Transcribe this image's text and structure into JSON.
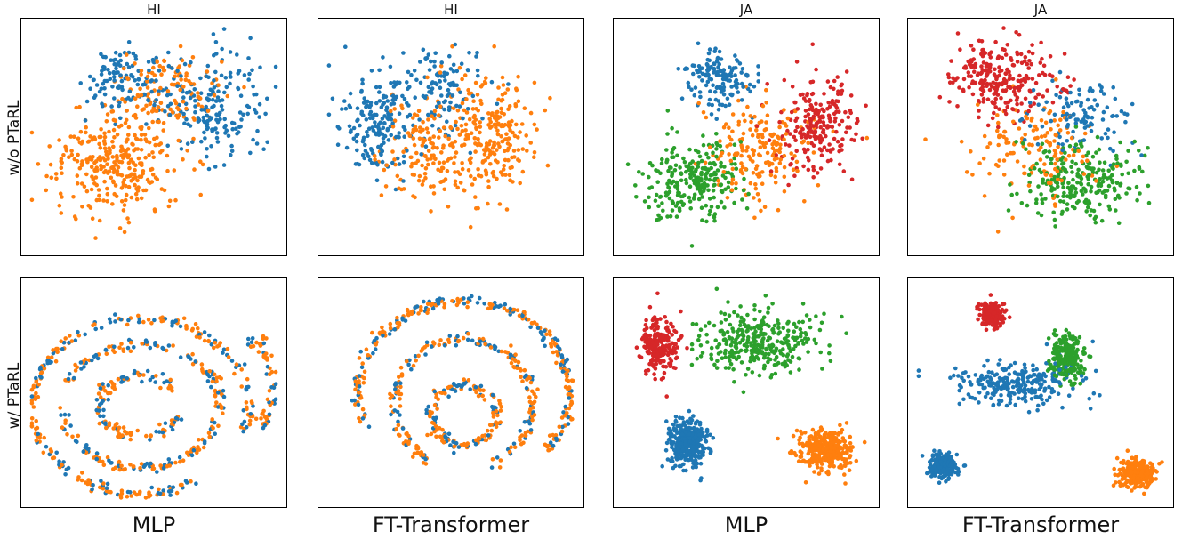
{
  "figure": {
    "col_titles": [
      "HI",
      "HI",
      "JA",
      "JA"
    ],
    "row_labels": [
      "w/o PTaRL",
      "w/ PTaRL"
    ],
    "model_labels": [
      "MLP",
      "FT-Transformer",
      "MLP",
      "FT-Transformer"
    ]
  },
  "colors": {
    "c0": "#1f77b4",
    "c1": "#ff7f0e",
    "c2": "#2ca02c",
    "c3": "#d62728"
  },
  "chart_data": [
    {
      "type": "scatter",
      "title": "HI",
      "dataset": "HI",
      "model": "MLP",
      "setting": "w/o PTaRL",
      "classes": 2,
      "ticks_shown": false,
      "clusters": [
        {
          "cls": 0,
          "cx": 0.72,
          "cy": 0.38,
          "sx": 0.18,
          "sy": 0.2,
          "n": 190
        },
        {
          "cls": 0,
          "cx": 0.4,
          "cy": 0.25,
          "sx": 0.15,
          "sy": 0.12,
          "n": 120
        },
        {
          "cls": 1,
          "cx": 0.35,
          "cy": 0.62,
          "sx": 0.22,
          "sy": 0.2,
          "n": 300
        },
        {
          "cls": 1,
          "cx": 0.55,
          "cy": 0.3,
          "sx": 0.2,
          "sy": 0.16,
          "n": 120
        }
      ]
    },
    {
      "type": "scatter",
      "title": "HI",
      "dataset": "HI",
      "model": "FT-Transformer",
      "setting": "w/o PTaRL",
      "classes": 2,
      "ticks_shown": false,
      "clusters": [
        {
          "cls": 0,
          "cx": 0.22,
          "cy": 0.45,
          "sx": 0.12,
          "sy": 0.2,
          "n": 170
        },
        {
          "cls": 0,
          "cx": 0.45,
          "cy": 0.3,
          "sx": 0.18,
          "sy": 0.18,
          "n": 120
        },
        {
          "cls": 1,
          "cx": 0.62,
          "cy": 0.5,
          "sx": 0.18,
          "sy": 0.22,
          "n": 260
        },
        {
          "cls": 1,
          "cx": 0.4,
          "cy": 0.55,
          "sx": 0.16,
          "sy": 0.2,
          "n": 120
        }
      ]
    },
    {
      "type": "scatter",
      "title": "JA",
      "dataset": "JA",
      "model": "MLP",
      "setting": "w/o PTaRL",
      "classes": 4,
      "ticks_shown": false,
      "clusters": [
        {
          "cls": 0,
          "cx": 0.4,
          "cy": 0.25,
          "sx": 0.12,
          "sy": 0.12,
          "n": 150
        },
        {
          "cls": 2,
          "cx": 0.3,
          "cy": 0.68,
          "sx": 0.17,
          "sy": 0.16,
          "n": 250
        },
        {
          "cls": 3,
          "cx": 0.76,
          "cy": 0.45,
          "sx": 0.14,
          "sy": 0.18,
          "n": 220
        },
        {
          "cls": 1,
          "cx": 0.55,
          "cy": 0.55,
          "sx": 0.18,
          "sy": 0.2,
          "n": 180
        }
      ]
    },
    {
      "type": "scatter",
      "title": "JA",
      "dataset": "JA",
      "model": "FT-Transformer",
      "setting": "w/o PTaRL",
      "classes": 4,
      "ticks_shown": false,
      "clusters": [
        {
          "cls": 3,
          "cx": 0.35,
          "cy": 0.25,
          "sx": 0.18,
          "sy": 0.15,
          "n": 250
        },
        {
          "cls": 2,
          "cx": 0.65,
          "cy": 0.68,
          "sx": 0.2,
          "sy": 0.15,
          "n": 250
        },
        {
          "cls": 0,
          "cx": 0.65,
          "cy": 0.4,
          "sx": 0.18,
          "sy": 0.15,
          "n": 110
        },
        {
          "cls": 1,
          "cx": 0.45,
          "cy": 0.55,
          "sx": 0.22,
          "sy": 0.2,
          "n": 140
        }
      ]
    },
    {
      "type": "scatter",
      "title": "",
      "dataset": "HI",
      "model": "MLP",
      "setting": "w/ PTaRL",
      "classes": 2,
      "ticks_shown": false,
      "arcs": [
        {
          "cx": 0.45,
          "cy": 0.56,
          "rx": 0.15,
          "ry": 0.13,
          "a0": 20,
          "a1": 330,
          "n": 120
        },
        {
          "cx": 0.45,
          "cy": 0.56,
          "rx": 0.3,
          "ry": 0.27,
          "a0": 200,
          "a1": 540,
          "n": 220
        },
        {
          "cx": 0.45,
          "cy": 0.56,
          "rx": 0.41,
          "ry": 0.38,
          "a0": 60,
          "a1": 380,
          "n": 260
        },
        {
          "cx": 0.88,
          "cy": 0.48,
          "rx": 0.06,
          "ry": 0.2,
          "a0": 250,
          "a1": 420,
          "n": 60
        }
      ]
    },
    {
      "type": "scatter",
      "title": "",
      "dataset": "HI",
      "model": "FT-Transformer",
      "setting": "w/ PTaRL",
      "classes": 2,
      "ticks_shown": false,
      "arcs": [
        {
          "cx": 0.55,
          "cy": 0.6,
          "rx": 0.12,
          "ry": 0.13,
          "a0": 0,
          "a1": 360,
          "n": 150
        },
        {
          "cx": 0.55,
          "cy": 0.55,
          "rx": 0.26,
          "ry": 0.28,
          "a0": 120,
          "a1": 430,
          "n": 210
        },
        {
          "cx": 0.55,
          "cy": 0.5,
          "rx": 0.4,
          "ry": 0.4,
          "a0": 160,
          "a1": 400,
          "n": 280
        }
      ]
    },
    {
      "type": "scatter",
      "title": "",
      "dataset": "JA",
      "model": "MLP",
      "setting": "w/ PTaRL",
      "classes": 4,
      "ticks_shown": false,
      "clusters": [
        {
          "cls": 3,
          "cx": 0.17,
          "cy": 0.3,
          "sx": 0.06,
          "sy": 0.1,
          "n": 230
        },
        {
          "cls": 2,
          "cx": 0.55,
          "cy": 0.28,
          "sx": 0.2,
          "sy": 0.13,
          "n": 320
        },
        {
          "cls": 0,
          "cx": 0.28,
          "cy": 0.72,
          "sx": 0.07,
          "sy": 0.09,
          "n": 330
        },
        {
          "cls": 1,
          "cx": 0.8,
          "cy": 0.75,
          "sx": 0.09,
          "sy": 0.08,
          "n": 330
        }
      ]
    },
    {
      "type": "scatter",
      "title": "",
      "dataset": "JA",
      "model": "FT-Transformer",
      "setting": "w/ PTaRL",
      "classes": 4,
      "ticks_shown": false,
      "clusters": [
        {
          "cls": 3,
          "cx": 0.32,
          "cy": 0.16,
          "sx": 0.04,
          "sy": 0.05,
          "n": 180
        },
        {
          "cls": 2,
          "cx": 0.6,
          "cy": 0.35,
          "sx": 0.06,
          "sy": 0.1,
          "n": 220
        },
        {
          "cls": 0,
          "cx": 0.4,
          "cy": 0.47,
          "sx": 0.22,
          "sy": 0.1,
          "n": 250
        },
        {
          "cls": 0,
          "cx": 0.13,
          "cy": 0.82,
          "sx": 0.05,
          "sy": 0.05,
          "n": 200
        },
        {
          "cls": 1,
          "cx": 0.86,
          "cy": 0.85,
          "sx": 0.06,
          "sy": 0.06,
          "n": 260
        }
      ]
    }
  ]
}
